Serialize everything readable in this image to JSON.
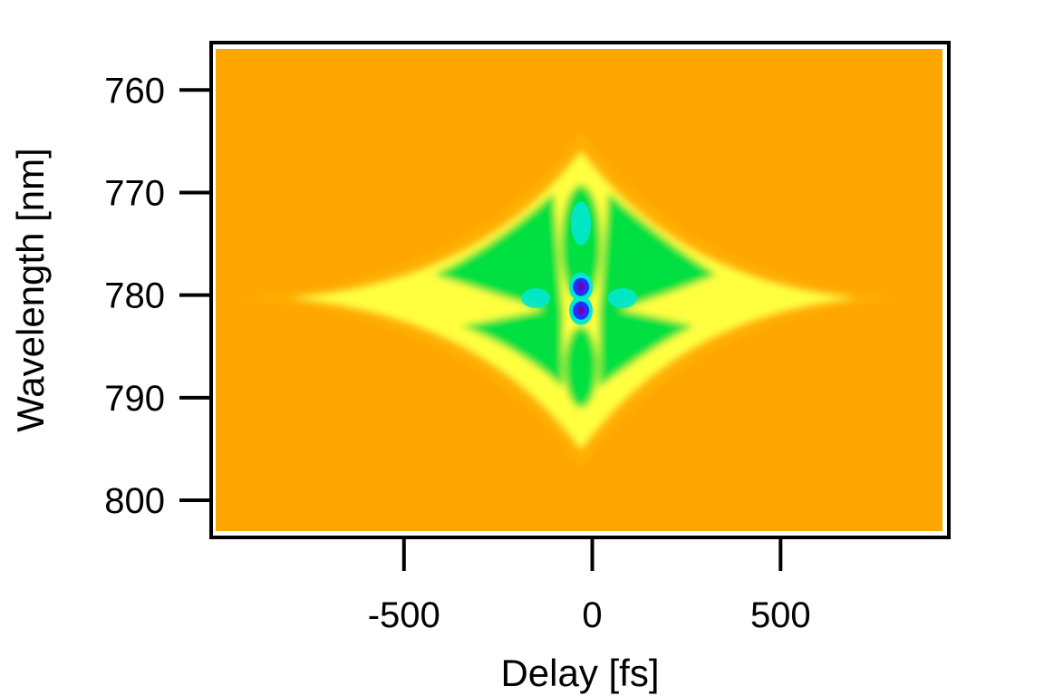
{
  "chart_data": {
    "type": "heatmap",
    "title": "",
    "xlabel": "Delay [fs]",
    "ylabel": "Wavelength [nm]",
    "xlim": [
      -1000,
      930
    ],
    "ylim": [
      756,
      803
    ],
    "y_inverted": true,
    "x_ticks": [
      {
        "value": -500,
        "label": "-500"
      },
      {
        "value": 0,
        "label": "0"
      },
      {
        "value": 500,
        "label": "500"
      }
    ],
    "y_ticks": [
      {
        "value": 760,
        "label": "760"
      },
      {
        "value": 770,
        "label": "770"
      },
      {
        "value": 780,
        "label": "780"
      },
      {
        "value": 790,
        "label": "790"
      },
      {
        "value": 800,
        "label": "800"
      }
    ],
    "grid": false,
    "colormap": [
      "#ff9a00",
      "#ffb000",
      "#ffff40",
      "#00e040",
      "#00e8d0",
      "#2030ff",
      "#7000c0"
    ],
    "background_color": "#ffa500",
    "features": [
      {
        "label": "center peak upper",
        "delay": -30,
        "wavelength": 779.2,
        "level": 1.0
      },
      {
        "label": "center peak lower",
        "delay": -30,
        "wavelength": 781.5,
        "level": 1.0
      },
      {
        "label": "upper lobe",
        "delay": -30,
        "wavelength": 773,
        "level": 0.65
      },
      {
        "label": "left side lobe",
        "delay": -150,
        "wavelength": 780.3,
        "level": 0.6
      },
      {
        "label": "right side lobe",
        "delay": 80,
        "wavelength": 780.3,
        "level": 0.55
      }
    ]
  }
}
